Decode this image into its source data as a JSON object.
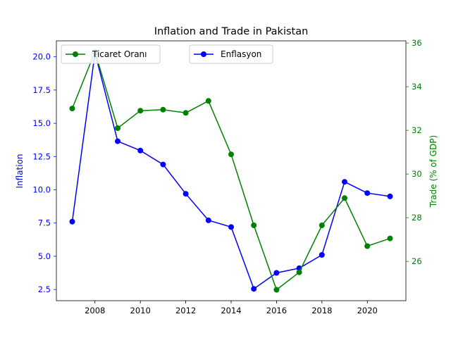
{
  "chart_data": {
    "type": "line",
    "title": "Inflation and Trade in Pakistan",
    "xlabel": "",
    "x": [
      2007,
      2008,
      2009,
      2010,
      2011,
      2012,
      2013,
      2014,
      2015,
      2016,
      2017,
      2018,
      2019,
      2020,
      2021
    ],
    "x_ticks": [
      "2008",
      "2010",
      "2012",
      "2014",
      "2016",
      "2018",
      "2020"
    ],
    "xlim": [
      2006.3,
      2021.7
    ],
    "y_left": {
      "label": "Inflation",
      "ylim": [
        1.66,
        21.2
      ],
      "ticks": [
        "2.5",
        "5.0",
        "7.5",
        "10.0",
        "12.5",
        "15.0",
        "17.5",
        "20.0"
      ],
      "color": "#0000ff"
    },
    "y_right": {
      "label": "Trade (% of GDP)",
      "ylim": [
        24.2,
        36.1
      ],
      "ticks": [
        "26",
        "28",
        "30",
        "32",
        "34",
        "36"
      ],
      "color": "#008000"
    },
    "series": [
      {
        "name": "Enflasyon",
        "axis": "left",
        "color": "#0000ff",
        "values": [
          7.6,
          20.3,
          13.65,
          12.95,
          11.9,
          9.7,
          7.7,
          7.2,
          2.55,
          3.75,
          4.1,
          5.1,
          10.6,
          9.75,
          9.5
        ]
      },
      {
        "name": "Ticaret Oranı",
        "axis": "right",
        "color": "#008000",
        "values": [
          33.0,
          35.6,
          32.1,
          32.9,
          32.95,
          32.8,
          33.35,
          30.9,
          27.65,
          24.7,
          25.5,
          27.65,
          28.9,
          26.7,
          27.05
        ]
      }
    ],
    "legend": [
      "upper-left",
      "upper-center"
    ],
    "grid": false
  }
}
